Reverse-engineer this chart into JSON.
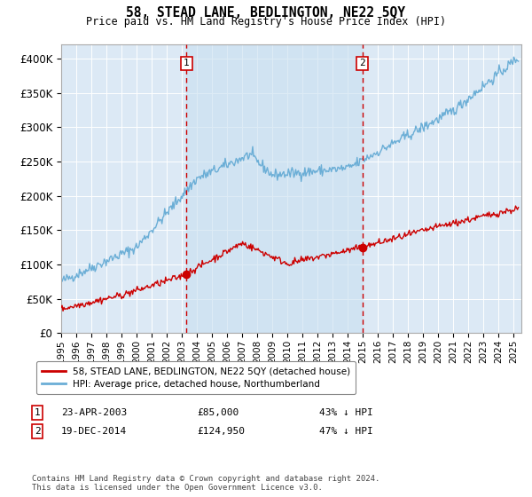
{
  "title": "58, STEAD LANE, BEDLINGTON, NE22 5QY",
  "subtitle": "Price paid vs. HM Land Registry's House Price Index (HPI)",
  "background_color": "#ffffff",
  "plot_bg_color": "#dce9f5",
  "hpi_color": "#6baed6",
  "price_color": "#cc0000",
  "dashed_line_color": "#cc0000",
  "marker_color": "#cc0000",
  "transaction1": {
    "date_num": 2003.31,
    "price": 85000,
    "label": "1",
    "date_str": "23-APR-2003",
    "pct": "43% ↓ HPI"
  },
  "transaction2": {
    "date_num": 2014.96,
    "price": 124950,
    "label": "2",
    "date_str": "19-DEC-2014",
    "pct": "47% ↓ HPI"
  },
  "ylabel_ticks": [
    0,
    50000,
    100000,
    150000,
    200000,
    250000,
    300000,
    350000,
    400000
  ],
  "ylabel_labels": [
    "£0",
    "£50K",
    "£100K",
    "£150K",
    "£200K",
    "£250K",
    "£300K",
    "£350K",
    "£400K"
  ],
  "xmin": 1995.0,
  "xmax": 2025.5,
  "ymin": 0,
  "ymax": 420000,
  "legend_line1": "58, STEAD LANE, BEDLINGTON, NE22 5QY (detached house)",
  "legend_line2": "HPI: Average price, detached house, Northumberland",
  "footnote": "Contains HM Land Registry data © Crown copyright and database right 2024.\nThis data is licensed under the Open Government Licence v3.0."
}
